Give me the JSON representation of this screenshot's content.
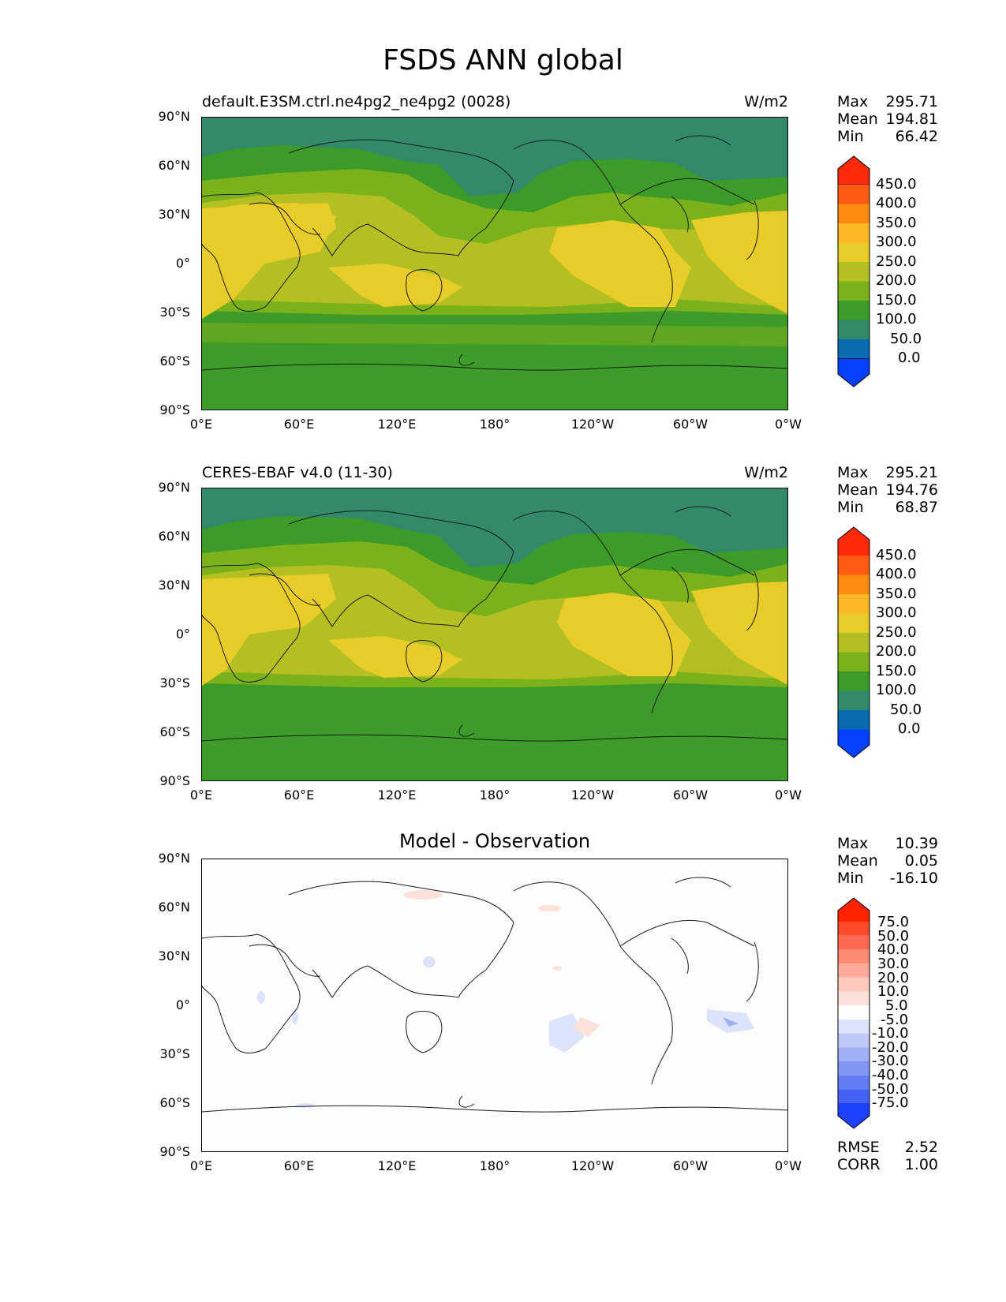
{
  "figure": {
    "title": "FSDS ANN global"
  },
  "axes": {
    "y_ticks": [
      "90°N",
      "60°N",
      "30°N",
      "0°",
      "30°S",
      "60°S",
      "90°S"
    ],
    "x_ticks": [
      "0°E",
      "60°E",
      "120°E",
      "180°",
      "120°W",
      "60°W",
      "0°W"
    ]
  },
  "panels": [
    {
      "id": "test",
      "title_left": "default.E3SM.ctrl.ne4pg2_ne4pg2 (0028)",
      "title_right": "W/m2",
      "stats": [
        {
          "label": "Max",
          "value": "295.71"
        },
        {
          "label": "Mean",
          "value": "194.81"
        },
        {
          "label": "Min",
          "value": "66.42"
        }
      ],
      "colorbar": {
        "labels": [
          "450.0",
          "400.0",
          "350.0",
          "300.0",
          "250.0",
          "200.0",
          "150.0",
          "100.0",
          "50.0",
          "0.0"
        ],
        "colors": [
          "#ff2a0a",
          "#ff5a12",
          "#ff8c10",
          "#fdb825",
          "#e8cc27",
          "#b4c022",
          "#7bb11a",
          "#3d9b2a",
          "#338a6a",
          "#0a6cb0",
          "#0540ff"
        ]
      }
    },
    {
      "id": "ref",
      "title_left": "CERES-EBAF v4.0 (11-30)",
      "title_right": "W/m2",
      "stats": [
        {
          "label": "Max",
          "value": "295.21"
        },
        {
          "label": "Mean",
          "value": "194.76"
        },
        {
          "label": "Min",
          "value": "68.87"
        }
      ],
      "colorbar": {
        "labels": [
          "450.0",
          "400.0",
          "350.0",
          "300.0",
          "250.0",
          "200.0",
          "150.0",
          "100.0",
          "50.0",
          "0.0"
        ],
        "colors": [
          "#ff2a0a",
          "#ff5a12",
          "#ff8c10",
          "#fdb825",
          "#e8cc27",
          "#b4c022",
          "#7bb11a",
          "#3d9b2a",
          "#338a6a",
          "#0a6cb0",
          "#0540ff"
        ]
      }
    },
    {
      "id": "diff",
      "title_center": "Model - Observation",
      "stats": [
        {
          "label": "Max",
          "value": "10.39"
        },
        {
          "label": "Mean",
          "value": "0.05"
        },
        {
          "label": "Min",
          "value": "-16.10"
        }
      ],
      "colorbar": {
        "labels": [
          "75.0",
          "50.0",
          "40.0",
          "30.0",
          "20.0",
          "10.0",
          "5.0",
          "-5.0",
          "-10.0",
          "-20.0",
          "-30.0",
          "-40.0",
          "-50.0",
          "-75.0"
        ],
        "colors": [
          "#ff2200",
          "#ff4a2a",
          "#ff6a50",
          "#ff8a74",
          "#ffaa98",
          "#ffc8bc",
          "#fde2db",
          "#ffffff",
          "#dde3fb",
          "#bfc9f7",
          "#a0b0f4",
          "#8196f3",
          "#627cf2",
          "#4462f4",
          "#1e40ff"
        ]
      },
      "metrics": [
        {
          "label": "RMSE",
          "value": "2.52"
        },
        {
          "label": "CORR",
          "value": "1.00"
        }
      ]
    }
  ]
}
